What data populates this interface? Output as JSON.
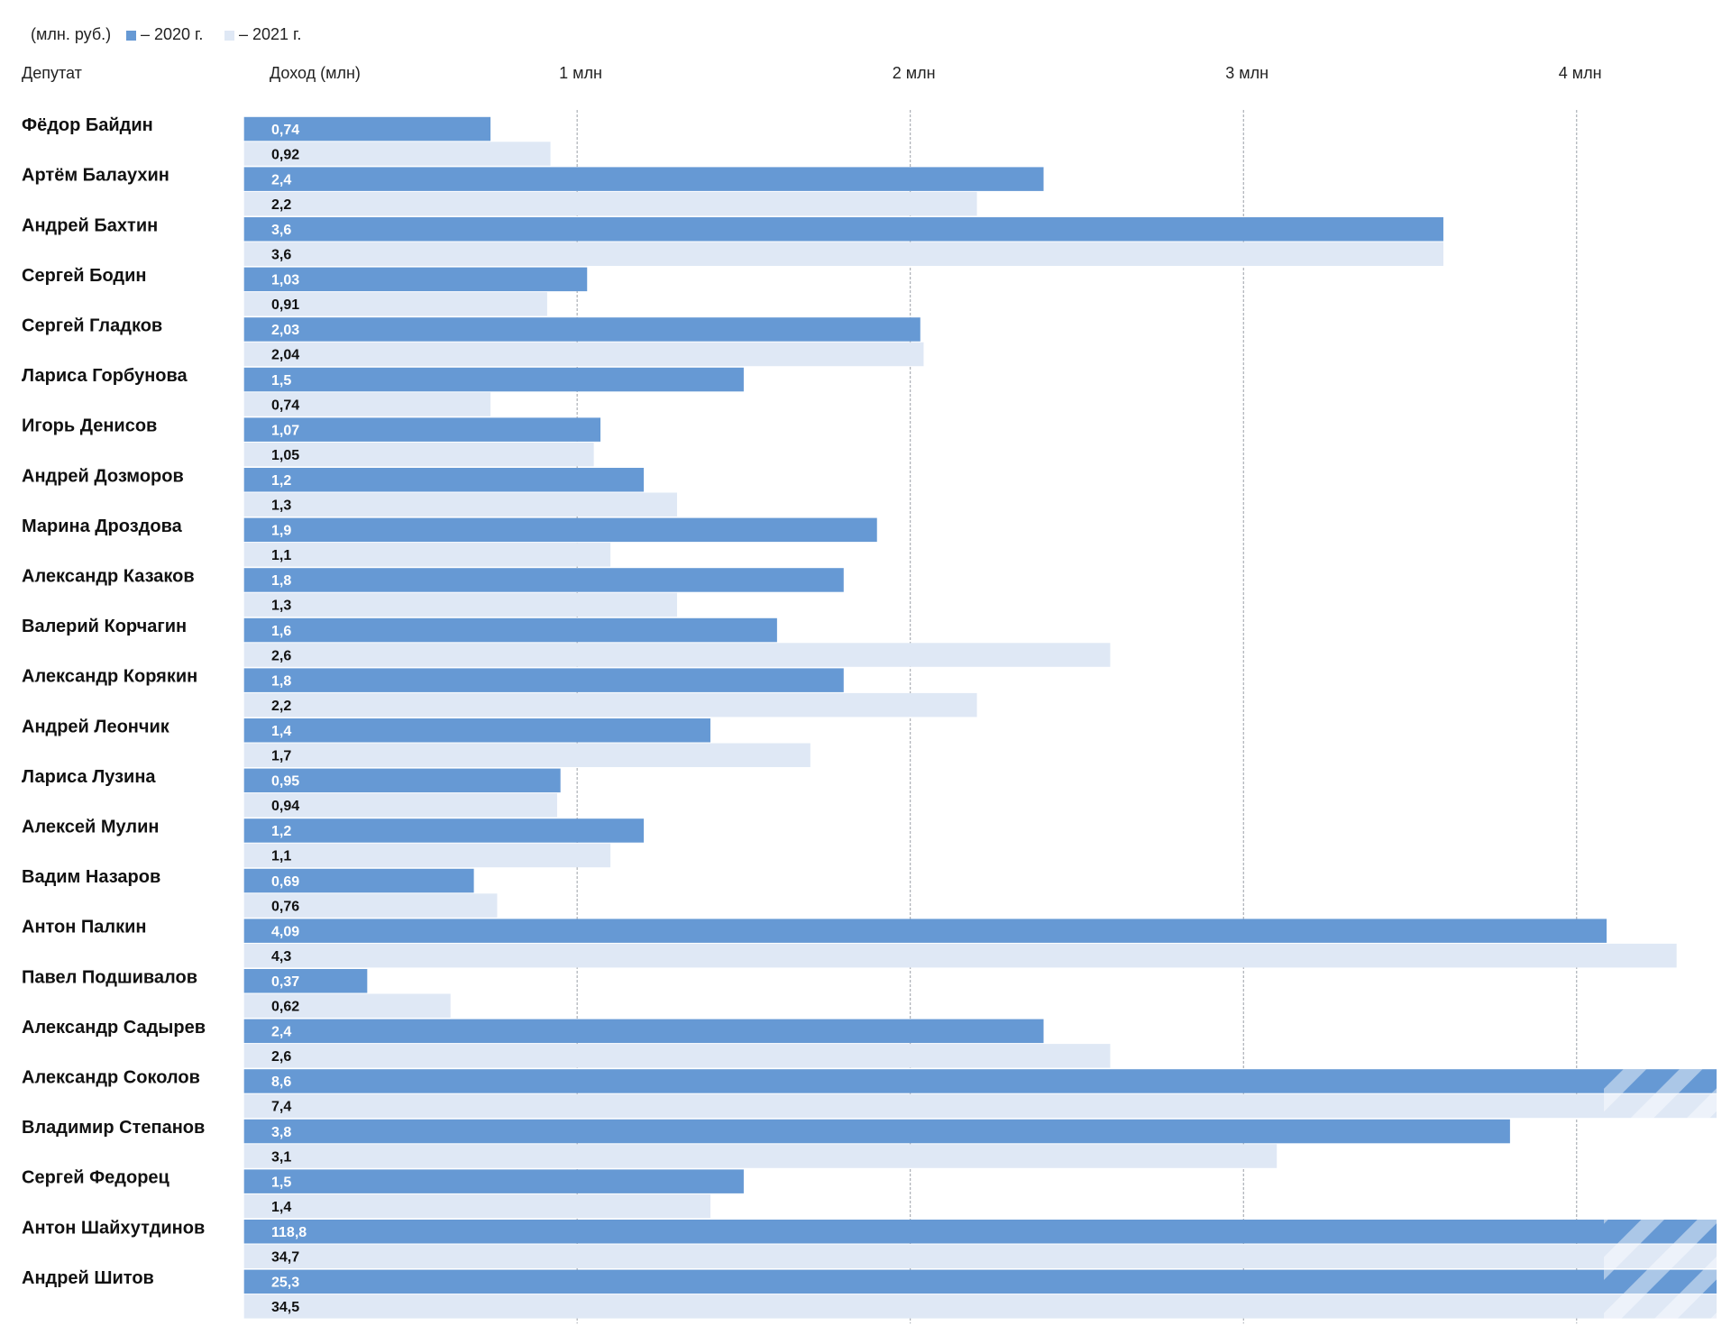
{
  "chart_data": {
    "type": "barh",
    "note": "(млн. руб.)",
    "category_header": "Депутат",
    "value_header": "Доход (млн)",
    "categories": [
      "Фёдор Байдин",
      "Артём Балаухин",
      "Андрей Бахтин",
      "Сергей Бодин",
      "Сергей Гладков",
      "Лариса Горбунова",
      "Игорь Денисов",
      "Андрей Дозморов",
      "Марина Дроздова",
      "Александр Казаков",
      "Валерий Корчагин",
      "Александр Корякин",
      "Андрей Леончик",
      "Лариса Лузина",
      "Алексей Мулин",
      "Вадим Назаров",
      "Антон Палкин",
      "Павел Подшивалов",
      "Александр Садырев",
      "Александр Соколов",
      "Владимир Степанов",
      "Сергей Федорец",
      "Антон Шайхутдинов",
      "Андрей Шитов"
    ],
    "series": [
      {
        "name": "– 2020 г.",
        "color": "#6699d4",
        "values": [
          0.74,
          2.4,
          3.6,
          1.03,
          2.03,
          1.5,
          1.07,
          1.2,
          1.9,
          1.8,
          1.6,
          1.8,
          1.4,
          0.95,
          1.2,
          0.69,
          4.09,
          0.37,
          2.4,
          8.6,
          3.8,
          1.5,
          118.8,
          25.3
        ],
        "value_labels": [
          "0,74",
          "2,4",
          "3,6",
          "1,03",
          "2,03",
          "1,5",
          "1,07",
          "1,2",
          "1,9",
          "1,8",
          "1,6",
          "1,8",
          "1,4",
          "0,95",
          "1,2",
          "0,69",
          "4,09",
          "0,37",
          "2,4",
          "8,6",
          "3,8",
          "1,5",
          "118,8",
          "25,3"
        ]
      },
      {
        "name": "– 2021 г.",
        "color": "#dfe8f5",
        "values": [
          0.92,
          2.2,
          3.6,
          0.91,
          2.04,
          0.74,
          1.05,
          1.3,
          1.1,
          1.3,
          2.6,
          2.2,
          1.7,
          0.94,
          1.1,
          0.76,
          4.3,
          0.62,
          2.6,
          7.4,
          3.1,
          1.4,
          34.7,
          34.5
        ],
        "value_labels": [
          "0,92",
          "2,2",
          "3,6",
          "0,91",
          "2,04",
          "0,74",
          "1,05",
          "1,3",
          "1,1",
          "1,3",
          "2,6",
          "2,2",
          "1,7",
          "0,94",
          "1,1",
          "0,76",
          "4,3",
          "0,62",
          "2,6",
          "7,4",
          "3,1",
          "1,4",
          "34,7",
          "34,5"
        ]
      }
    ],
    "xlim": [
      0,
      4.42
    ],
    "xticks": [
      {
        "value": 1,
        "label": "1 млн"
      },
      {
        "value": 2,
        "label": "2 млн"
      },
      {
        "value": 3,
        "label": "3 млн"
      },
      {
        "value": 4,
        "label": "4 млн"
      }
    ],
    "grid": true
  }
}
